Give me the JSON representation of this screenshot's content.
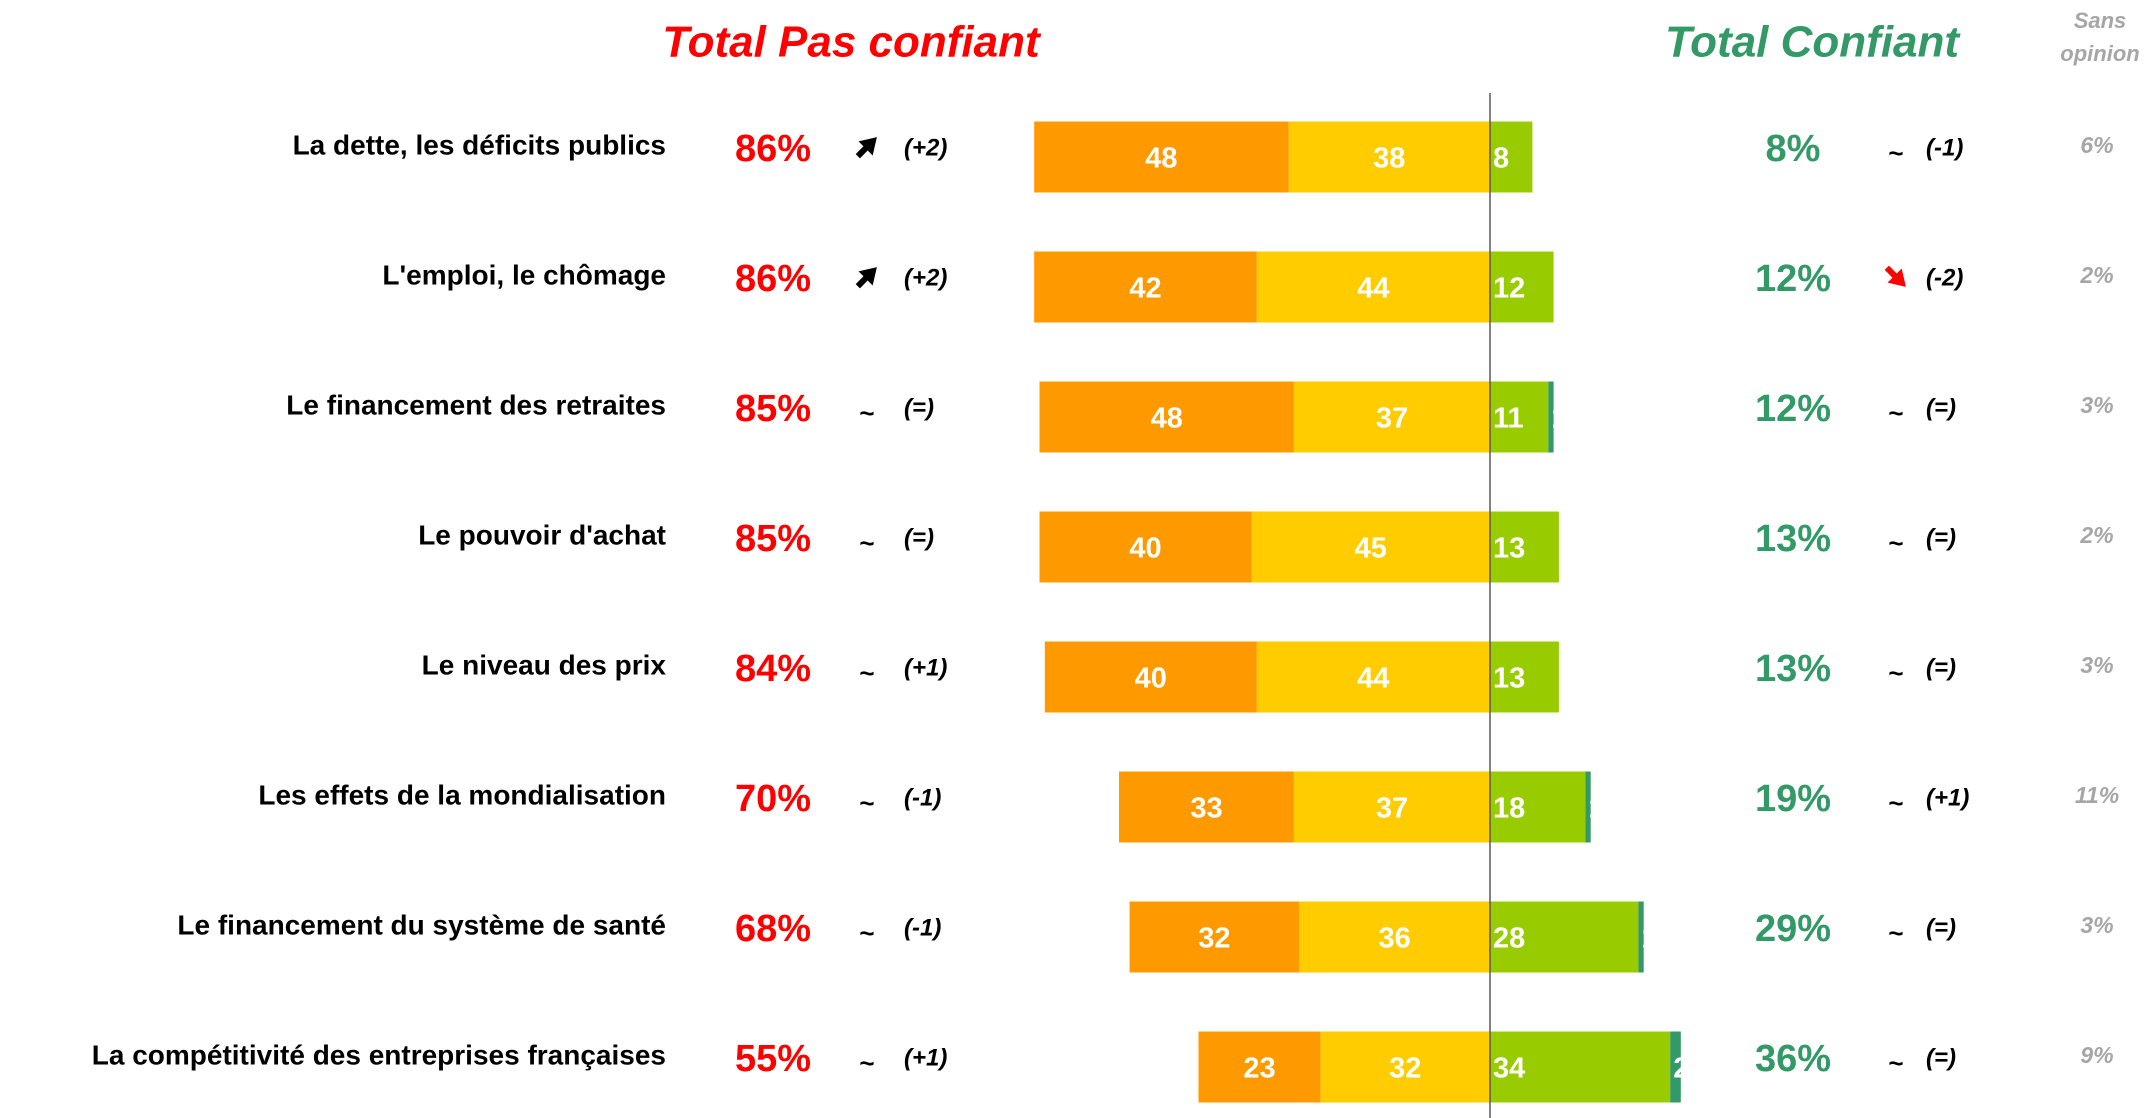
{
  "chart_data": {
    "type": "diverging_bar",
    "title_left": "Total Pas confiant",
    "title_right": "Total Confiant",
    "no_opinion_header": [
      "Sans",
      "opinion"
    ],
    "categories": [
      "La dette, les déficits publics",
      "L'emploi, le chômage",
      "Le financement des retraites",
      "Le pouvoir d'achat",
      "Le niveau des prix",
      "Les effets de la mondialisation",
      "Le financement du système de santé",
      "La compétitivité des entreprises françaises"
    ],
    "series": [
      {
        "side": "left",
        "color": "#FF9900",
        "values": [
          48,
          42,
          48,
          40,
          40,
          33,
          32,
          23
        ]
      },
      {
        "side": "left",
        "color": "#FFCC00",
        "values": [
          38,
          44,
          37,
          45,
          44,
          37,
          36,
          32
        ]
      },
      {
        "side": "right",
        "color": "#99CC00",
        "values": [
          8,
          12,
          11,
          13,
          13,
          18,
          28,
          34
        ]
      },
      {
        "side": "right",
        "color": "#339966",
        "values": [
          0,
          0,
          1,
          0,
          0,
          1,
          1,
          2
        ]
      }
    ],
    "total_left": {
      "color": "#FF0000",
      "values": [
        86,
        86,
        85,
        85,
        84,
        70,
        68,
        55
      ],
      "value_labels": [
        "86%",
        "86%",
        "85%",
        "85%",
        "84%",
        "70%",
        "68%",
        "55%"
      ],
      "trend_symbols": [
        null,
        null,
        "~",
        "~",
        "~",
        "~",
        "~",
        "~"
      ],
      "trend_labels": [
        "(+2)",
        "(+2)",
        "(=)",
        "(=)",
        "(+1)",
        "(-1)",
        "(-1)",
        "(+1)"
      ]
    },
    "total_right": {
      "color": "#339966",
      "values": [
        8,
        12,
        12,
        13,
        13,
        19,
        29,
        36
      ],
      "value_labels": [
        "8%",
        "12%",
        "12%",
        "13%",
        "13%",
        "19%",
        "29%",
        "36%"
      ],
      "trend_symbols": [
        "~",
        null,
        "~",
        "~",
        "~",
        "~",
        "~",
        "~"
      ],
      "trend_labels": [
        "(-1)",
        "(-2)",
        "(=)",
        "(=)",
        "(=)",
        "(+1)",
        "(=)",
        "(=)"
      ]
    },
    "no_opinion": {
      "color": "#A6A6A6",
      "values": [
        6,
        2,
        3,
        2,
        3,
        11,
        3,
        9
      ],
      "value_labels": [
        "6%",
        "2%",
        "3%",
        "2%",
        "3%",
        "11%",
        "3%",
        "9%"
      ]
    }
  }
}
